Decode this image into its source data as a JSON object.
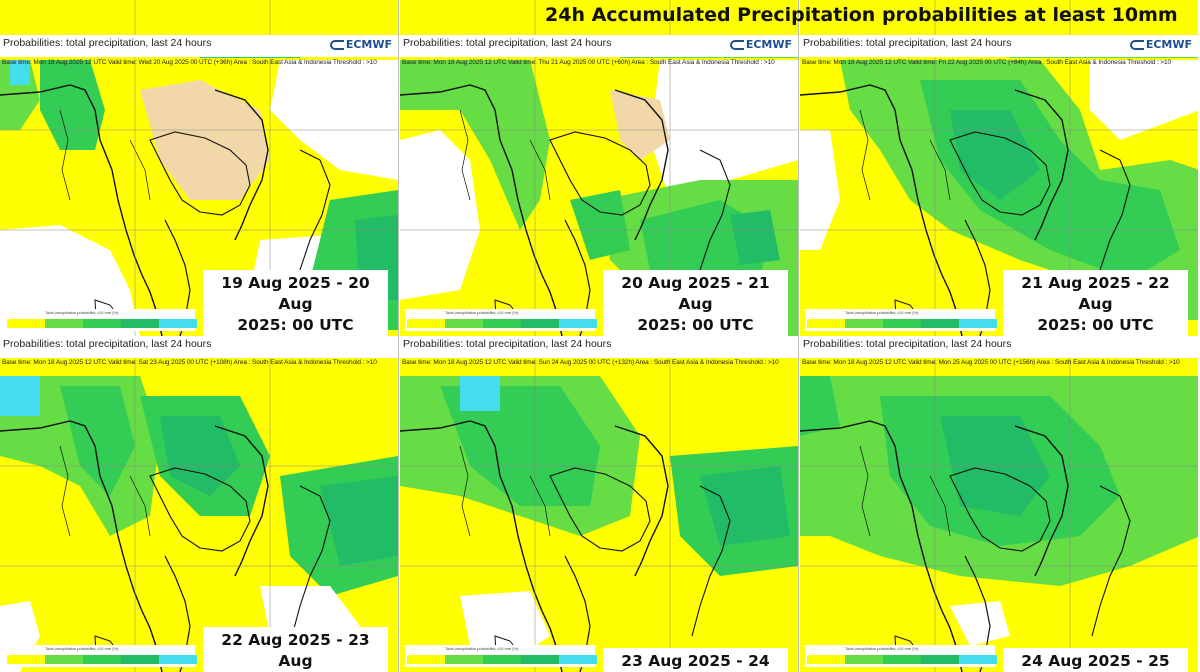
{
  "title": "24h Accumulated Precipitation probabilities at least 10mm",
  "header_label": "Probabilities:  total precipitation, last 24 hours",
  "logo_text": "ECMWF",
  "colorbar_caption": "Total precipitation probability >10 mm (%)",
  "colors": {
    "land": "#f2d8a8",
    "sea": "#ffffff",
    "yellow": "#ffff00",
    "green_light": "#66dd44",
    "green_mid": "#33cc55",
    "green_dark": "#22bb66",
    "cyan": "#44ddee",
    "coast": "#111111"
  },
  "panels": [
    {
      "base_time": "Base time: Mon 18 Aug 2025 12 UTC Valid time: Wed 20 Aug 2025 00 UTC (+36h) Area : South East Asia & Indonesia Threshold : >10",
      "date_line1": "19 Aug 2025 - 20 Aug",
      "date_line2": "2025: 00 UTC"
    },
    {
      "base_time": "Base time: Mon 18 Aug 2025 12 UTC Valid time: Thu 21 Aug 2025 00 UTC (+60h) Area : South East Asia & Indonesia Threshold : >10",
      "date_line1": "20 Aug 2025 - 21 Aug",
      "date_line2": "2025: 00 UTC"
    },
    {
      "base_time": "Base time: Mon 18 Aug 2025 12 UTC Valid time: Fri 22 Aug 2025 00 UTC (+84h) Area : South East Asia & Indonesia Threshold : >10",
      "date_line1": "21 Aug 2025 - 22 Aug",
      "date_line2": "2025: 00 UTC"
    },
    {
      "base_time": "Base time: Mon 18 Aug 2025 12 UTC Valid time: Sat 23 Aug 2025 00 UTC (+108h) Area : South East Asia & Indonesia Threshold : >10",
      "date_line1": "22 Aug 2025 - 23 Aug",
      "date_line2": ""
    },
    {
      "base_time": "Base time: Mon 18 Aug 2025 12 UTC Valid time: Sun 24 Aug 2025 00 UTC (+132h) Area : South East Asia & Indonesia Threshold : >10",
      "date_line1": "23 Aug 2025 - 24",
      "date_line2": ""
    },
    {
      "base_time": "Base time: Mon 18 Aug 2025 12 UTC Valid time: Mon 25 Aug 2025 00 UTC (+156h) Area : South East Asia & Indonesia Threshold : >10",
      "date_line1": "24 Aug 2025 - 25",
      "date_line2": ""
    }
  ]
}
